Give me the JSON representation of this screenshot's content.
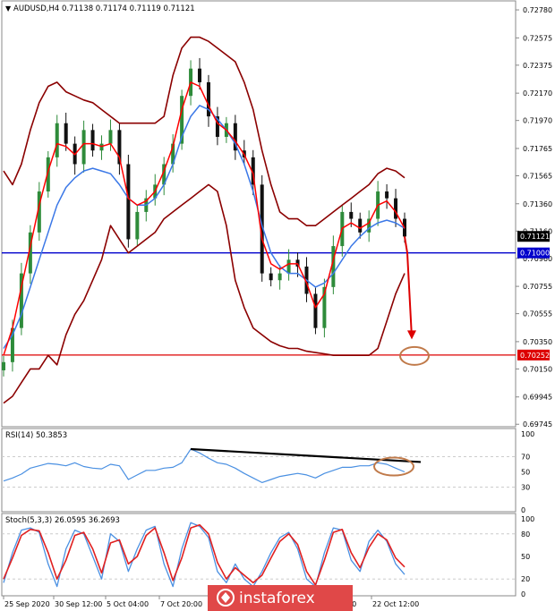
{
  "header": {
    "symbol_line": "AUDUSD,H4  0.71138 0.71174 0.71119 0.71121"
  },
  "watermark": "instaforex",
  "colors": {
    "bollinger": "#8b0000",
    "fast_ma": "#ff0000",
    "slow_ma": "#3b78e7",
    "candle_up": "#2e8b3a",
    "candle_down": "#111111",
    "support_line": "#0000cc",
    "target_line": "#dd0000",
    "trend_line": "#000000",
    "annotation": "#c07a4a",
    "rsi": "#4a90e2",
    "stoch_main": "#4a90e2",
    "stoch_signal": "#e02020",
    "price_tag_bg": "#000000",
    "support_tag_bg": "#0000cc",
    "target_tag_bg": "#dd0000"
  },
  "chart_data": [
    {
      "type": "line",
      "panel": "price",
      "ylim": [
        0.6974,
        0.728
      ],
      "y_ticks": [
        "0.72780",
        "0.72575",
        "0.72375",
        "0.72170",
        "0.71970",
        "0.71765",
        "0.71565",
        "0.71360",
        "0.71160",
        "0.70960",
        "0.70755",
        "0.70555",
        "0.70350",
        "0.70150",
        "0.69945",
        "0.69745"
      ],
      "x_ticks": [
        "25 Sep 2020",
        "30 Sep 12:00",
        "5 Oct 04:00",
        "7 Oct 20:00",
        "20 Oct 12:00",
        "22 Oct 12:00"
      ],
      "price_tags": [
        {
          "label": "0.71121",
          "value": 0.71121
        },
        {
          "label": "0.71000",
          "value": 0.71
        },
        {
          "label": "0.70252",
          "value": 0.70252
        }
      ],
      "horizontal_levels": [
        {
          "value": 0.71
        },
        {
          "value": 0.70252
        }
      ],
      "series": [
        {
          "key": "close",
          "values": [
            0.702,
            0.7045,
            0.7085,
            0.7115,
            0.7145,
            0.717,
            0.7195,
            0.718,
            0.7165,
            0.719,
            0.7175,
            0.718,
            0.719,
            0.7165,
            0.711,
            0.713,
            0.714,
            0.715,
            0.7165,
            0.718,
            0.7215,
            0.7235,
            0.7225,
            0.72,
            0.7185,
            0.7195,
            0.7175,
            0.717,
            0.715,
            0.7085,
            0.708,
            0.7085,
            0.7095,
            0.709,
            0.707,
            0.7045,
            0.7075,
            0.7105,
            0.713,
            0.7125,
            0.7115,
            0.7125,
            0.7145,
            0.714,
            0.7125,
            0.7112
          ]
        },
        {
          "key": "bb_upper",
          "values": [
            0.716,
            0.715,
            0.7165,
            0.719,
            0.721,
            0.7222,
            0.7225,
            0.7218,
            0.7215,
            0.7212,
            0.721,
            0.7205,
            0.72,
            0.7195,
            0.7195,
            0.7195,
            0.7195,
            0.7195,
            0.72,
            0.723,
            0.725,
            0.7258,
            0.7258,
            0.7255,
            0.725,
            0.7245,
            0.724,
            0.7225,
            0.7205,
            0.7175,
            0.715,
            0.713,
            0.7125,
            0.7125,
            0.712,
            0.712,
            0.7125,
            0.713,
            0.7135,
            0.714,
            0.7145,
            0.715,
            0.7158,
            0.7162,
            0.716,
            0.7155
          ]
        },
        {
          "key": "bb_lower",
          "values": [
            0.699,
            0.6995,
            0.7005,
            0.7015,
            0.7015,
            0.7025,
            0.7018,
            0.704,
            0.7055,
            0.7065,
            0.708,
            0.7095,
            0.712,
            0.711,
            0.71,
            0.7105,
            0.711,
            0.7115,
            0.7125,
            0.713,
            0.7135,
            0.714,
            0.7145,
            0.715,
            0.7145,
            0.712,
            0.708,
            0.706,
            0.7045,
            0.704,
            0.7035,
            0.7032,
            0.703,
            0.703,
            0.7028,
            0.7027,
            0.7026,
            0.7025,
            0.7025,
            0.7025,
            0.7025,
            0.7025,
            0.703,
            0.705,
            0.707,
            0.7085
          ]
        },
        {
          "key": "slow_ma",
          "values": [
            0.703,
            0.704,
            0.7055,
            0.7075,
            0.7095,
            0.7115,
            0.7135,
            0.7148,
            0.7155,
            0.716,
            0.7162,
            0.716,
            0.7158,
            0.715,
            0.714,
            0.7135,
            0.7135,
            0.714,
            0.715,
            0.7165,
            0.7185,
            0.72,
            0.7208,
            0.7205,
            0.7198,
            0.719,
            0.718,
            0.7165,
            0.7145,
            0.712,
            0.71,
            0.709,
            0.7085,
            0.7085,
            0.708,
            0.7075,
            0.7078,
            0.7085,
            0.7095,
            0.7105,
            0.7112,
            0.7118,
            0.7122,
            0.7124,
            0.7122,
            0.7118
          ]
        },
        {
          "key": "fast_ma",
          "values": [
            0.7025,
            0.7045,
            0.7075,
            0.7105,
            0.7135,
            0.716,
            0.718,
            0.7178,
            0.7172,
            0.718,
            0.718,
            0.7178,
            0.718,
            0.717,
            0.714,
            0.7135,
            0.7138,
            0.7145,
            0.716,
            0.7178,
            0.7205,
            0.7225,
            0.7222,
            0.7208,
            0.7195,
            0.719,
            0.7182,
            0.7172,
            0.7158,
            0.711,
            0.7092,
            0.7088,
            0.7092,
            0.7092,
            0.7078,
            0.706,
            0.707,
            0.7095,
            0.7118,
            0.7122,
            0.7118,
            0.7122,
            0.7135,
            0.7138,
            0.713,
            0.7118
          ]
        },
        {
          "key": "forecast_path",
          "values": [
            0.7112,
            0.71,
            0.7038
          ]
        }
      ]
    },
    {
      "type": "line",
      "panel": "rsi",
      "title": "RSI(14) 50.3853",
      "ylim": [
        0,
        100
      ],
      "y_ticks": [
        "100",
        "70",
        "50",
        "30",
        "0"
      ],
      "series": [
        {
          "key": "rsi",
          "values": [
            38,
            42,
            47,
            55,
            58,
            61,
            60,
            58,
            62,
            57,
            55,
            54,
            60,
            58,
            40,
            46,
            52,
            52,
            55,
            56,
            62,
            80,
            75,
            68,
            62,
            60,
            55,
            48,
            42,
            36,
            40,
            44,
            46,
            48,
            46,
            42,
            48,
            52,
            56,
            56,
            58,
            58,
            62,
            60,
            55,
            50
          ]
        }
      ]
    },
    {
      "type": "line",
      "panel": "stoch",
      "title": "Stoch(5,3,3) 26.0595 36.2693",
      "ylim": [
        0,
        100
      ],
      "y_ticks": [
        "100",
        "80",
        "50",
        "20",
        "0"
      ],
      "series": [
        {
          "key": "stoch_main",
          "values": [
            15,
            55,
            85,
            88,
            82,
            40,
            10,
            60,
            85,
            80,
            50,
            20,
            80,
            70,
            30,
            60,
            85,
            90,
            40,
            10,
            60,
            95,
            90,
            75,
            30,
            15,
            40,
            20,
            10,
            30,
            55,
            75,
            82,
            60,
            20,
            10,
            55,
            88,
            85,
            45,
            30,
            70,
            85,
            70,
            40,
            26
          ]
        },
        {
          "key": "stoch_signal",
          "values": [
            20,
            48,
            78,
            86,
            84,
            55,
            20,
            45,
            78,
            82,
            60,
            28,
            68,
            72,
            40,
            50,
            78,
            88,
            55,
            18,
            48,
            88,
            92,
            80,
            42,
            20,
            35,
            25,
            15,
            25,
            48,
            70,
            80,
            66,
            30,
            12,
            45,
            82,
            86,
            55,
            35,
            62,
            80,
            72,
            48,
            36
          ]
        }
      ]
    }
  ]
}
